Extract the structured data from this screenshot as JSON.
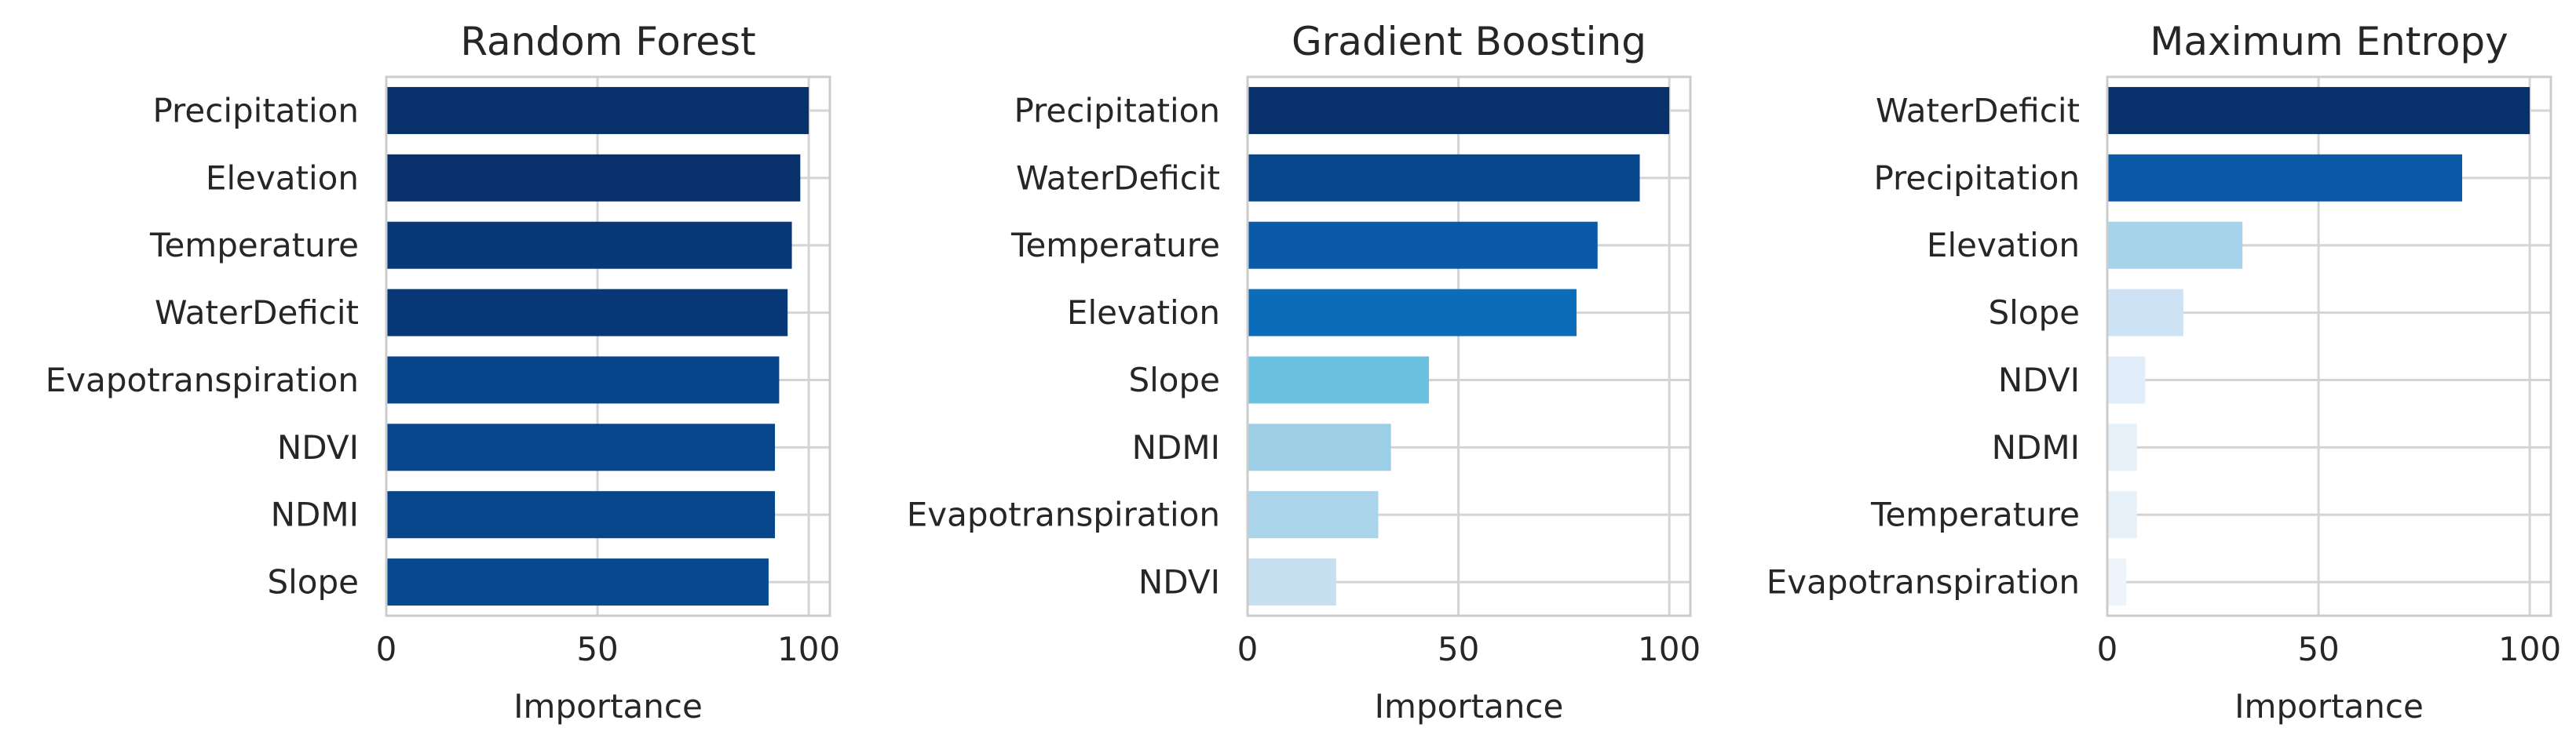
{
  "chart_data": [
    {
      "type": "bar",
      "orientation": "horizontal",
      "title": "Random Forest",
      "xlabel": "Importance",
      "ylabel": "",
      "xlim": [
        0,
        105
      ],
      "xticks": [
        "0",
        "50",
        "100"
      ],
      "grid": true,
      "categories": [
        "Precipitation",
        "Elevation",
        "Temperature",
        "WaterDeficit",
        "Evapotranspiration",
        "NDVI",
        "NDMI",
        "Slope"
      ],
      "values": [
        100,
        98,
        96,
        95,
        93,
        92,
        92,
        90.5
      ],
      "colors": [
        "#08306b",
        "#08306b",
        "#083877",
        "#083877",
        "#08448a",
        "#08468b",
        "#08468b",
        "#084a91"
      ]
    },
    {
      "type": "bar",
      "orientation": "horizontal",
      "title": "Gradient Boosting",
      "xlabel": "Importance",
      "ylabel": "",
      "xlim": [
        0,
        105
      ],
      "xticks": [
        "0",
        "50",
        "100"
      ],
      "grid": true,
      "categories": [
        "Precipitation",
        "WaterDeficit",
        "Temperature",
        "Elevation",
        "Slope",
        "NDMI",
        "Evapotranspiration",
        "NDVI"
      ],
      "values": [
        100,
        93,
        83,
        78,
        43,
        34,
        31,
        21
      ],
      "colors": [
        "#08306b",
        "#08468b",
        "#0a5aa8",
        "#0b6db9",
        "#6bc1e0",
        "#9ccfe6",
        "#a9d4ea",
        "#c6dff1"
      ]
    },
    {
      "type": "bar",
      "orientation": "horizontal",
      "title": "Maximum Entropy",
      "xlabel": "Importance",
      "ylabel": "",
      "xlim": [
        0,
        105
      ],
      "xticks": [
        "0",
        "50",
        "100"
      ],
      "grid": true,
      "categories": [
        "WaterDeficit",
        "Precipitation",
        "Elevation",
        "Slope",
        "NDVI",
        "NDMI",
        "Temperature",
        "Evapotranspiration"
      ],
      "values": [
        100,
        84,
        32,
        18,
        9,
        7,
        7,
        4.5
      ],
      "colors": [
        "#08306b",
        "#0a5aa8",
        "#a6d3ea",
        "#cde2f4",
        "#e1edf8",
        "#e6f0f9",
        "#e6f0f9",
        "#edf4fb"
      ]
    }
  ]
}
